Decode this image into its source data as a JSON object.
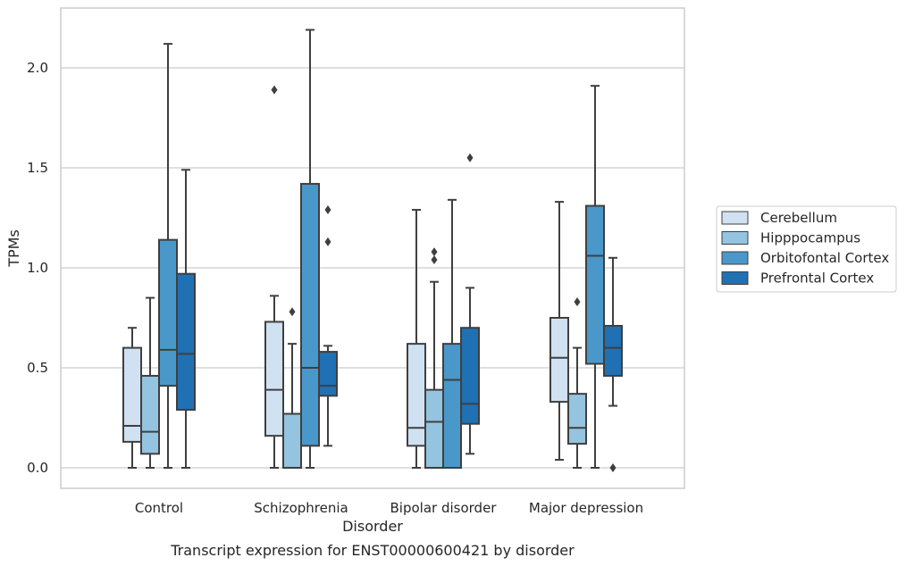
{
  "chart_data": {
    "type": "box",
    "caption": "Transcript expression for ENST00000600421 by disorder",
    "xlabel": "Disorder",
    "ylabel": "TPMs",
    "ylim": [
      -0.1,
      2.3
    ],
    "yticks": [
      0.0,
      0.5,
      1.0,
      1.5,
      2.0
    ],
    "ytick_labels": [
      "0.0",
      "0.5",
      "1.0",
      "1.5",
      "2.0"
    ],
    "grid": "horizontal",
    "legend_position": "right",
    "categories": [
      "Control",
      "Schizophrenia",
      "Bipolar disorder",
      "Major depression"
    ],
    "series": [
      {
        "name": "Cerebellum",
        "color": "#d0e1f2",
        "boxes": [
          {
            "category": "Control",
            "whisker_low": 0.0,
            "q1": 0.13,
            "median": 0.21,
            "q3": 0.6,
            "whisker_high": 0.7,
            "outliers": []
          },
          {
            "category": "Schizophrenia",
            "whisker_low": 0.0,
            "q1": 0.16,
            "median": 0.39,
            "q3": 0.73,
            "whisker_high": 0.86,
            "outliers": [
              1.89
            ]
          },
          {
            "category": "Bipolar disorder",
            "whisker_low": 0.0,
            "q1": 0.11,
            "median": 0.2,
            "q3": 0.62,
            "whisker_high": 1.29,
            "outliers": []
          },
          {
            "category": "Major depression",
            "whisker_low": 0.04,
            "q1": 0.33,
            "median": 0.55,
            "q3": 0.75,
            "whisker_high": 1.33,
            "outliers": []
          }
        ]
      },
      {
        "name": "Hipppocampus",
        "color": "#94c4df",
        "boxes": [
          {
            "category": "Control",
            "whisker_low": 0.0,
            "q1": 0.07,
            "median": 0.18,
            "q3": 0.46,
            "whisker_high": 0.85,
            "outliers": []
          },
          {
            "category": "Schizophrenia",
            "whisker_low": 0.0,
            "q1": 0.0,
            "median": 0.0,
            "q3": 0.27,
            "whisker_high": 0.62,
            "outliers": [
              0.78
            ]
          },
          {
            "category": "Bipolar disorder",
            "whisker_low": 0.0,
            "q1": 0.0,
            "median": 0.23,
            "q3": 0.39,
            "whisker_high": 0.93,
            "outliers": [
              1.04,
              1.08
            ]
          },
          {
            "category": "Major depression",
            "whisker_low": 0.0,
            "q1": 0.12,
            "median": 0.2,
            "q3": 0.37,
            "whisker_high": 0.6,
            "outliers": [
              0.83
            ]
          }
        ]
      },
      {
        "name": "Orbitofontal Cortex",
        "color": "#4a98c9",
        "boxes": [
          {
            "category": "Control",
            "whisker_low": 0.0,
            "q1": 0.41,
            "median": 0.59,
            "q3": 1.14,
            "whisker_high": 2.12,
            "outliers": []
          },
          {
            "category": "Schizophrenia",
            "whisker_low": 0.0,
            "q1": 0.11,
            "median": 0.5,
            "q3": 1.42,
            "whisker_high": 2.19,
            "outliers": []
          },
          {
            "category": "Bipolar disorder",
            "whisker_low": 0.0,
            "q1": 0.0,
            "median": 0.44,
            "q3": 0.62,
            "whisker_high": 1.34,
            "outliers": []
          },
          {
            "category": "Major depression",
            "whisker_low": 0.0,
            "q1": 0.52,
            "median": 1.06,
            "q3": 1.31,
            "whisker_high": 1.91,
            "outliers": []
          }
        ]
      },
      {
        "name": "Prefrontal Cortex",
        "color": "#2070b4",
        "boxes": [
          {
            "category": "Control",
            "whisker_low": 0.0,
            "q1": 0.29,
            "median": 0.57,
            "q3": 0.97,
            "whisker_high": 1.49,
            "outliers": []
          },
          {
            "category": "Schizophrenia",
            "whisker_low": 0.11,
            "q1": 0.36,
            "median": 0.41,
            "q3": 0.58,
            "whisker_high": 0.61,
            "outliers": [
              1.13,
              1.29
            ]
          },
          {
            "category": "Bipolar disorder",
            "whisker_low": 0.07,
            "q1": 0.22,
            "median": 0.32,
            "q3": 0.7,
            "whisker_high": 0.9,
            "outliers": [
              1.55
            ]
          },
          {
            "category": "Major depression",
            "whisker_low": 0.31,
            "q1": 0.46,
            "median": 0.6,
            "q3": 0.71,
            "whisker_high": 1.05,
            "outliers": [
              0.0
            ]
          }
        ]
      }
    ]
  }
}
